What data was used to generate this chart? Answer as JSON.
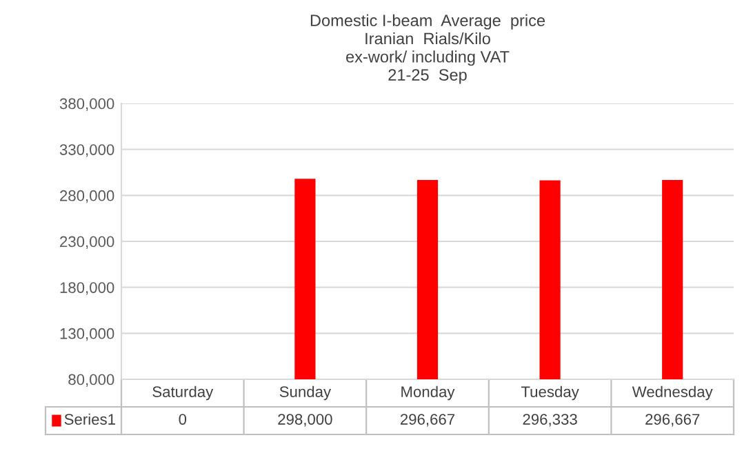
{
  "chart_data": {
    "type": "bar",
    "title": "Domestic I-beam  Average  price\nIranian  Rials/Kilo\nex-work/ including VAT\n21-25  Sep",
    "categories": [
      "Saturday",
      "Sunday",
      "Monday",
      "Tuesday",
      "Wednesday"
    ],
    "series": [
      {
        "name": "Series1",
        "color": "#ff0000",
        "values": [
          null,
          298000,
          296667,
          296333,
          296667
        ]
      }
    ],
    "value_labels": [
      "0",
      "298,000",
      "296,667",
      "296,333",
      "296,667"
    ],
    "ylim": [
      80000,
      380000
    ],
    "yticks": [
      {
        "value": 80000,
        "label": "80,000"
      },
      {
        "value": 130000,
        "label": "130,000"
      },
      {
        "value": 180000,
        "label": "180,000"
      },
      {
        "value": 230000,
        "label": "230,000"
      },
      {
        "value": 280000,
        "label": "280,000"
      },
      {
        "value": 330000,
        "label": "330,000"
      },
      {
        "value": 380000,
        "label": "380,000"
      }
    ],
    "grid": "y",
    "legend": "bottom left"
  }
}
